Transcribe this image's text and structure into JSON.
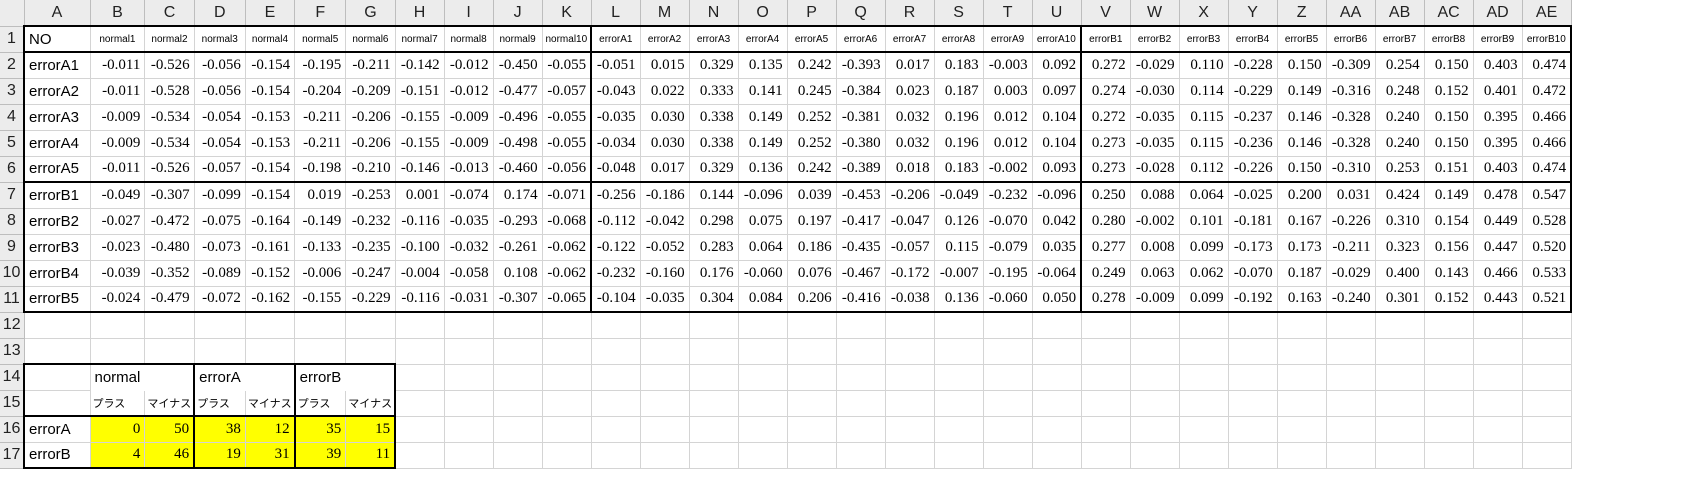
{
  "columns": [
    "A",
    "B",
    "C",
    "D",
    "E",
    "F",
    "G",
    "H",
    "I",
    "J",
    "K",
    "L",
    "M",
    "N",
    "O",
    "P",
    "Q",
    "R",
    "S",
    "T",
    "U",
    "V",
    "W",
    "X",
    "Y",
    "Z",
    "AA",
    "AB",
    "AC",
    "AD",
    "AE"
  ],
  "row_numbers": [
    "1",
    "2",
    "3",
    "4",
    "5",
    "6",
    "7",
    "8",
    "9",
    "10",
    "11",
    "12",
    "13",
    "14",
    "15",
    "16",
    "17"
  ],
  "header_row": [
    "NO",
    "normal1",
    "normal2",
    "normal3",
    "normal4",
    "normal5",
    "normal6",
    "normal7",
    "normal8",
    "normal9",
    "normal10",
    "errorA1",
    "errorA2",
    "errorA3",
    "errorA4",
    "errorA5",
    "errorA6",
    "errorA7",
    "errorA8",
    "errorA9",
    "errorA10",
    "errorB1",
    "errorB2",
    "errorB3",
    "errorB4",
    "errorB5",
    "errorB6",
    "errorB7",
    "errorB8",
    "errorB9",
    "errorB10"
  ],
  "data_rows": [
    {
      "label": "errorA1",
      "values": [
        "-0.011",
        "-0.526",
        "-0.056",
        "-0.154",
        "-0.195",
        "-0.211",
        "-0.142",
        "-0.012",
        "-0.450",
        "-0.055",
        "-0.051",
        "0.015",
        "0.329",
        "0.135",
        "0.242",
        "-0.393",
        "0.017",
        "0.183",
        "-0.003",
        "0.092",
        "0.272",
        "-0.029",
        "0.110",
        "-0.228",
        "0.150",
        "-0.309",
        "0.254",
        "0.150",
        "0.403",
        "0.474"
      ]
    },
    {
      "label": "errorA2",
      "values": [
        "-0.011",
        "-0.528",
        "-0.056",
        "-0.154",
        "-0.204",
        "-0.209",
        "-0.151",
        "-0.012",
        "-0.477",
        "-0.057",
        "-0.043",
        "0.022",
        "0.333",
        "0.141",
        "0.245",
        "-0.384",
        "0.023",
        "0.187",
        "0.003",
        "0.097",
        "0.274",
        "-0.030",
        "0.114",
        "-0.229",
        "0.149",
        "-0.316",
        "0.248",
        "0.152",
        "0.401",
        "0.472"
      ]
    },
    {
      "label": "errorA3",
      "values": [
        "-0.009",
        "-0.534",
        "-0.054",
        "-0.153",
        "-0.211",
        "-0.206",
        "-0.155",
        "-0.009",
        "-0.496",
        "-0.055",
        "-0.035",
        "0.030",
        "0.338",
        "0.149",
        "0.252",
        "-0.381",
        "0.032",
        "0.196",
        "0.012",
        "0.104",
        "0.272",
        "-0.035",
        "0.115",
        "-0.237",
        "0.146",
        "-0.328",
        "0.240",
        "0.150",
        "0.395",
        "0.466"
      ]
    },
    {
      "label": "errorA4",
      "values": [
        "-0.009",
        "-0.534",
        "-0.054",
        "-0.153",
        "-0.211",
        "-0.206",
        "-0.155",
        "-0.009",
        "-0.498",
        "-0.055",
        "-0.034",
        "0.030",
        "0.338",
        "0.149",
        "0.252",
        "-0.380",
        "0.032",
        "0.196",
        "0.012",
        "0.104",
        "0.273",
        "-0.035",
        "0.115",
        "-0.236",
        "0.146",
        "-0.328",
        "0.240",
        "0.150",
        "0.395",
        "0.466"
      ]
    },
    {
      "label": "errorA5",
      "values": [
        "-0.011",
        "-0.526",
        "-0.057",
        "-0.154",
        "-0.198",
        "-0.210",
        "-0.146",
        "-0.013",
        "-0.460",
        "-0.056",
        "-0.048",
        "0.017",
        "0.329",
        "0.136",
        "0.242",
        "-0.389",
        "0.018",
        "0.183",
        "-0.002",
        "0.093",
        "0.273",
        "-0.028",
        "0.112",
        "-0.226",
        "0.150",
        "-0.310",
        "0.253",
        "0.151",
        "0.403",
        "0.474"
      ]
    },
    {
      "label": "errorB1",
      "values": [
        "-0.049",
        "-0.307",
        "-0.099",
        "-0.154",
        "0.019",
        "-0.253",
        "0.001",
        "-0.074",
        "0.174",
        "-0.071",
        "-0.256",
        "-0.186",
        "0.144",
        "-0.096",
        "0.039",
        "-0.453",
        "-0.206",
        "-0.049",
        "-0.232",
        "-0.096",
        "0.250",
        "0.088",
        "0.064",
        "-0.025",
        "0.200",
        "0.031",
        "0.424",
        "0.149",
        "0.478",
        "0.547"
      ]
    },
    {
      "label": "errorB2",
      "values": [
        "-0.027",
        "-0.472",
        "-0.075",
        "-0.164",
        "-0.149",
        "-0.232",
        "-0.116",
        "-0.035",
        "-0.293",
        "-0.068",
        "-0.112",
        "-0.042",
        "0.298",
        "0.075",
        "0.197",
        "-0.417",
        "-0.047",
        "0.126",
        "-0.070",
        "0.042",
        "0.280",
        "-0.002",
        "0.101",
        "-0.181",
        "0.167",
        "-0.226",
        "0.310",
        "0.154",
        "0.449",
        "0.528"
      ]
    },
    {
      "label": "errorB3",
      "values": [
        "-0.023",
        "-0.480",
        "-0.073",
        "-0.161",
        "-0.133",
        "-0.235",
        "-0.100",
        "-0.032",
        "-0.261",
        "-0.062",
        "-0.122",
        "-0.052",
        "0.283",
        "0.064",
        "0.186",
        "-0.435",
        "-0.057",
        "0.115",
        "-0.079",
        "0.035",
        "0.277",
        "0.008",
        "0.099",
        "-0.173",
        "0.173",
        "-0.211",
        "0.323",
        "0.156",
        "0.447",
        "0.520"
      ]
    },
    {
      "label": "errorB4",
      "values": [
        "-0.039",
        "-0.352",
        "-0.089",
        "-0.152",
        "-0.006",
        "-0.247",
        "-0.004",
        "-0.058",
        "0.108",
        "-0.062",
        "-0.232",
        "-0.160",
        "0.176",
        "-0.060",
        "0.076",
        "-0.467",
        "-0.172",
        "-0.007",
        "-0.195",
        "-0.064",
        "0.249",
        "0.063",
        "0.062",
        "-0.070",
        "0.187",
        "-0.029",
        "0.400",
        "0.143",
        "0.466",
        "0.533"
      ]
    },
    {
      "label": "errorB5",
      "values": [
        "-0.024",
        "-0.479",
        "-0.072",
        "-0.162",
        "-0.155",
        "-0.229",
        "-0.116",
        "-0.031",
        "-0.307",
        "-0.065",
        "-0.104",
        "-0.035",
        "0.304",
        "0.084",
        "0.206",
        "-0.416",
        "-0.038",
        "0.136",
        "-0.060",
        "0.050",
        "0.278",
        "-0.009",
        "0.099",
        "-0.192",
        "0.163",
        "-0.240",
        "0.301",
        "0.152",
        "0.443",
        "0.521"
      ]
    }
  ],
  "summary": {
    "groups": [
      "normal",
      "errorA",
      "errorB"
    ],
    "sublabels": [
      "プラス",
      "マイナス"
    ],
    "rows": [
      {
        "label": "errorA",
        "values": [
          "0",
          "50",
          "38",
          "12",
          "35",
          "15"
        ]
      },
      {
        "label": "errorB",
        "values": [
          "4",
          "46",
          "19",
          "31",
          "39",
          "11"
        ]
      }
    ]
  },
  "colors": {
    "highlight": "#ffff00",
    "header_bg": "#ececec",
    "gridline": "#d4d4d4"
  }
}
